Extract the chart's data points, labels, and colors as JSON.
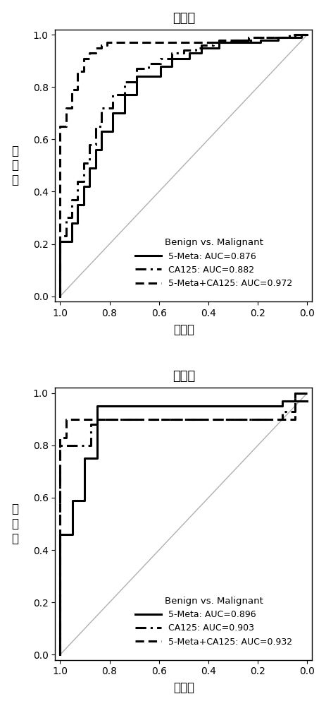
{
  "top_title": "发现组",
  "bottom_title": "验证组",
  "xlabel": "特异性",
  "ylabel": "灵\n敏\n度",
  "background_color": "#ffffff",
  "legend_title": "Benign vs. Malignant",
  "top_legend": [
    {
      "label": "5-Meta: AUC=0.876",
      "linestyle": "solid",
      "linewidth": 2.2
    },
    {
      "label": "CA125: AUC=0.882",
      "linestyle": "dashdot",
      "linewidth": 2.2
    },
    {
      "label": "5-Meta+CA125: AUC=0.972",
      "linestyle": "dashed",
      "linewidth": 2.2
    }
  ],
  "bottom_legend": [
    {
      "label": "5-Meta: AUC=0.896",
      "linestyle": "solid",
      "linewidth": 2.2
    },
    {
      "label": "CA125: AUC=0.903",
      "linestyle": "dashdot",
      "linewidth": 2.2
    },
    {
      "label": "5-Meta+CA125: AUC=0.932",
      "linestyle": "dashed",
      "linewidth": 2.2
    }
  ],
  "top_roc": {
    "solid_spec": [
      1.0,
      1.0,
      0.976,
      0.952,
      0.929,
      0.905,
      0.881,
      0.857,
      0.833,
      0.81,
      0.786,
      0.762,
      0.738,
      0.714,
      0.69,
      0.667,
      0.643,
      0.619,
      0.595,
      0.571,
      0.548,
      0.524,
      0.5,
      0.476,
      0.452,
      0.429,
      0.405,
      0.381,
      0.357,
      0.333,
      0.31,
      0.286,
      0.262,
      0.238,
      0.214,
      0.19,
      0.167,
      0.143,
      0.119,
      0.095,
      0.071,
      0.048,
      0.024,
      0.0
    ],
    "solid_tpr": [
      0.0,
      0.21,
      0.21,
      0.28,
      0.35,
      0.42,
      0.49,
      0.56,
      0.63,
      0.63,
      0.7,
      0.7,
      0.77,
      0.77,
      0.84,
      0.84,
      0.84,
      0.84,
      0.88,
      0.88,
      0.91,
      0.91,
      0.91,
      0.93,
      0.93,
      0.95,
      0.95,
      0.95,
      0.97,
      0.97,
      0.97,
      0.97,
      0.97,
      0.97,
      0.97,
      0.98,
      0.98,
      0.98,
      0.99,
      0.99,
      0.99,
      0.99,
      1.0,
      1.0
    ],
    "dashdot_spec": [
      1.0,
      1.0,
      0.976,
      0.952,
      0.929,
      0.905,
      0.881,
      0.857,
      0.833,
      0.81,
      0.786,
      0.762,
      0.738,
      0.714,
      0.69,
      0.667,
      0.643,
      0.619,
      0.595,
      0.571,
      0.548,
      0.524,
      0.5,
      0.476,
      0.452,
      0.429,
      0.405,
      0.381,
      0.357,
      0.333,
      0.31,
      0.286,
      0.262,
      0.238,
      0.214,
      0.19,
      0.167,
      0.143,
      0.119,
      0.095,
      0.071,
      0.048,
      0.024,
      0.0
    ],
    "dashdot_tpr": [
      0.0,
      0.23,
      0.3,
      0.37,
      0.44,
      0.51,
      0.58,
      0.65,
      0.72,
      0.72,
      0.77,
      0.77,
      0.82,
      0.82,
      0.87,
      0.87,
      0.89,
      0.89,
      0.91,
      0.91,
      0.93,
      0.93,
      0.94,
      0.94,
      0.95,
      0.96,
      0.96,
      0.97,
      0.97,
      0.97,
      0.98,
      0.98,
      0.98,
      0.98,
      0.99,
      0.99,
      0.99,
      0.99,
      0.99,
      0.99,
      1.0,
      1.0,
      1.0,
      1.0
    ],
    "dashed_spec": [
      1.0,
      1.0,
      0.976,
      0.952,
      0.929,
      0.905,
      0.881,
      0.857,
      0.833,
      0.81,
      0.786,
      0.762,
      0.738,
      0.714,
      0.69,
      0.667,
      0.643,
      0.619,
      0.595,
      0.571,
      0.548,
      0.524,
      0.5,
      0.476,
      0.452,
      0.429,
      0.405,
      0.381,
      0.357,
      0.333,
      0.31,
      0.286,
      0.262,
      0.238,
      0.214,
      0.19,
      0.167,
      0.143,
      0.119,
      0.095,
      0.071,
      0.048,
      0.024,
      0.0
    ],
    "dashed_tpr": [
      0.0,
      0.65,
      0.72,
      0.79,
      0.86,
      0.91,
      0.93,
      0.95,
      0.96,
      0.97,
      0.97,
      0.97,
      0.97,
      0.97,
      0.97,
      0.97,
      0.97,
      0.97,
      0.97,
      0.97,
      0.97,
      0.97,
      0.97,
      0.97,
      0.97,
      0.97,
      0.97,
      0.97,
      0.98,
      0.98,
      0.98,
      0.98,
      0.98,
      0.99,
      0.99,
      0.99,
      0.99,
      0.99,
      0.99,
      0.99,
      0.99,
      1.0,
      1.0,
      1.0
    ]
  },
  "bottom_roc": {
    "solid_spec": [
      1.0,
      1.0,
      0.975,
      0.95,
      0.925,
      0.9,
      0.875,
      0.85,
      0.825,
      0.8,
      0.775,
      0.75,
      0.725,
      0.7,
      0.15,
      0.1,
      0.05,
      0.0
    ],
    "solid_tpr": [
      0.0,
      0.46,
      0.46,
      0.59,
      0.59,
      0.75,
      0.75,
      0.95,
      0.95,
      0.95,
      0.95,
      0.95,
      0.95,
      0.95,
      0.95,
      0.97,
      0.97,
      0.97
    ],
    "dashdot_spec": [
      1.0,
      1.0,
      0.975,
      0.95,
      0.925,
      0.9,
      0.875,
      0.85,
      0.825,
      0.8,
      0.775,
      0.75,
      0.725,
      0.7,
      0.2,
      0.1,
      0.05,
      0.0
    ],
    "dashdot_tpr": [
      0.0,
      0.8,
      0.8,
      0.8,
      0.8,
      0.8,
      0.88,
      0.9,
      0.9,
      0.9,
      0.9,
      0.9,
      0.9,
      0.9,
      0.9,
      0.93,
      1.0,
      1.0
    ],
    "dashed_spec": [
      1.0,
      1.0,
      0.975,
      0.95,
      0.925,
      0.9,
      0.875,
      0.85,
      0.825,
      0.8,
      0.775,
      0.75,
      0.725,
      0.7,
      0.15,
      0.1,
      0.05,
      0.0
    ],
    "dashed_tpr": [
      0.0,
      0.83,
      0.9,
      0.9,
      0.9,
      0.9,
      0.9,
      0.9,
      0.9,
      0.9,
      0.9,
      0.9,
      0.9,
      0.9,
      0.9,
      0.9,
      1.0,
      1.0
    ]
  },
  "diag_color": "#b0b0b0",
  "line_color": "#000000"
}
